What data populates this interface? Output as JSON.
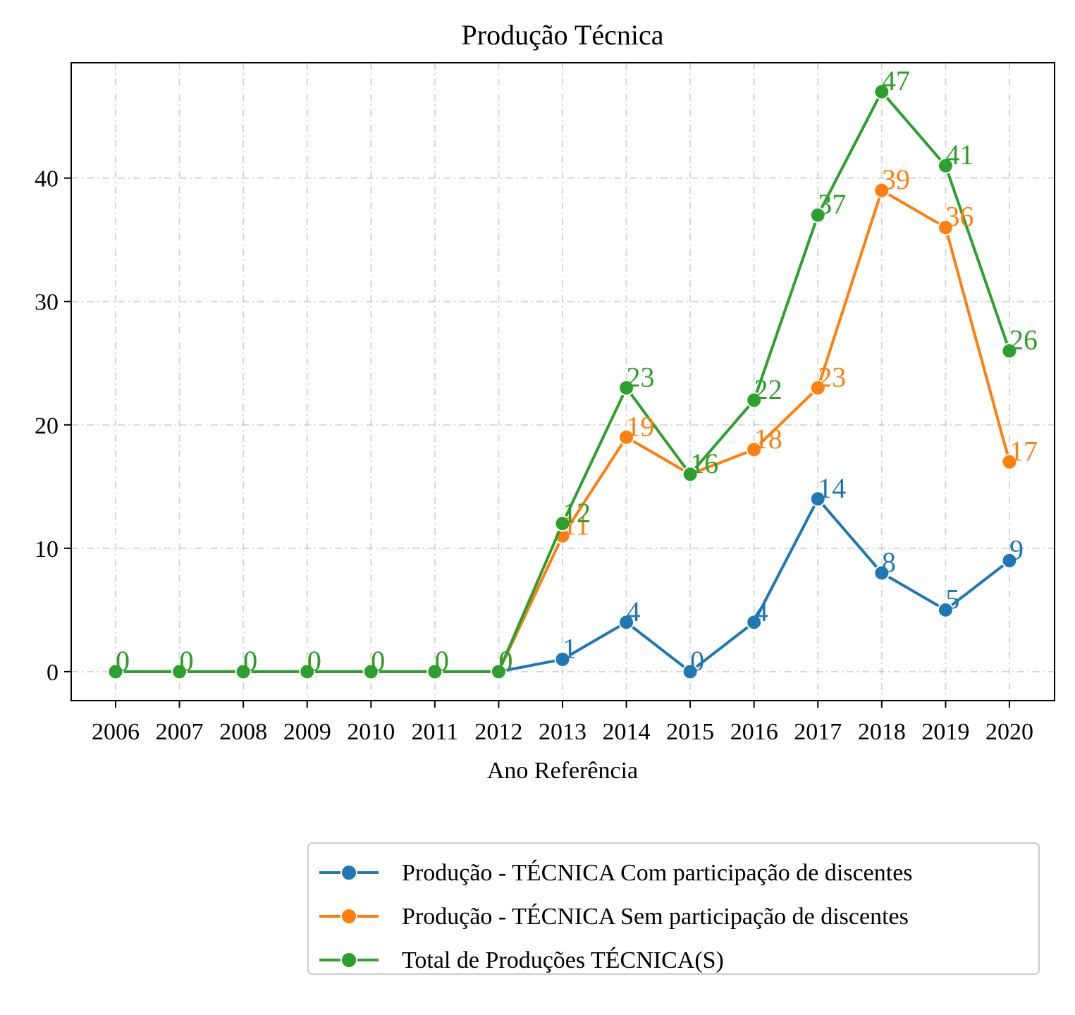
{
  "chart_data": {
    "type": "line",
    "title": "Produção Técnica",
    "xlabel": "Ano Referência",
    "ylabel": "",
    "x": [
      "2006",
      "2007",
      "2008",
      "2009",
      "2010",
      "2011",
      "2012",
      "2013",
      "2014",
      "2015",
      "2016",
      "2017",
      "2018",
      "2019",
      "2020"
    ],
    "yticks": [
      0,
      10,
      20,
      30,
      40
    ],
    "ylim": [
      -2.35,
      49.35
    ],
    "grid": true,
    "legend_position": "bottom-right (below plot)",
    "series": [
      {
        "name": "Produção - TÉCNICA Com participação de discentes",
        "color": "#1f77b4",
        "values": [
          0,
          0,
          0,
          0,
          0,
          0,
          0,
          1,
          4,
          0,
          4,
          14,
          8,
          5,
          9
        ]
      },
      {
        "name": "Produção - TÉCNICA Sem participação de discentes",
        "color": "#ff7f0e",
        "values": [
          0,
          0,
          0,
          0,
          0,
          0,
          0,
          11,
          19,
          16,
          18,
          23,
          39,
          36,
          17
        ]
      },
      {
        "name": "Total de Produções TÉCNICA(S)",
        "color": "#2ca02c",
        "values": [
          0,
          0,
          0,
          0,
          0,
          0,
          0,
          12,
          23,
          16,
          22,
          37,
          47,
          41,
          26
        ]
      }
    ]
  }
}
